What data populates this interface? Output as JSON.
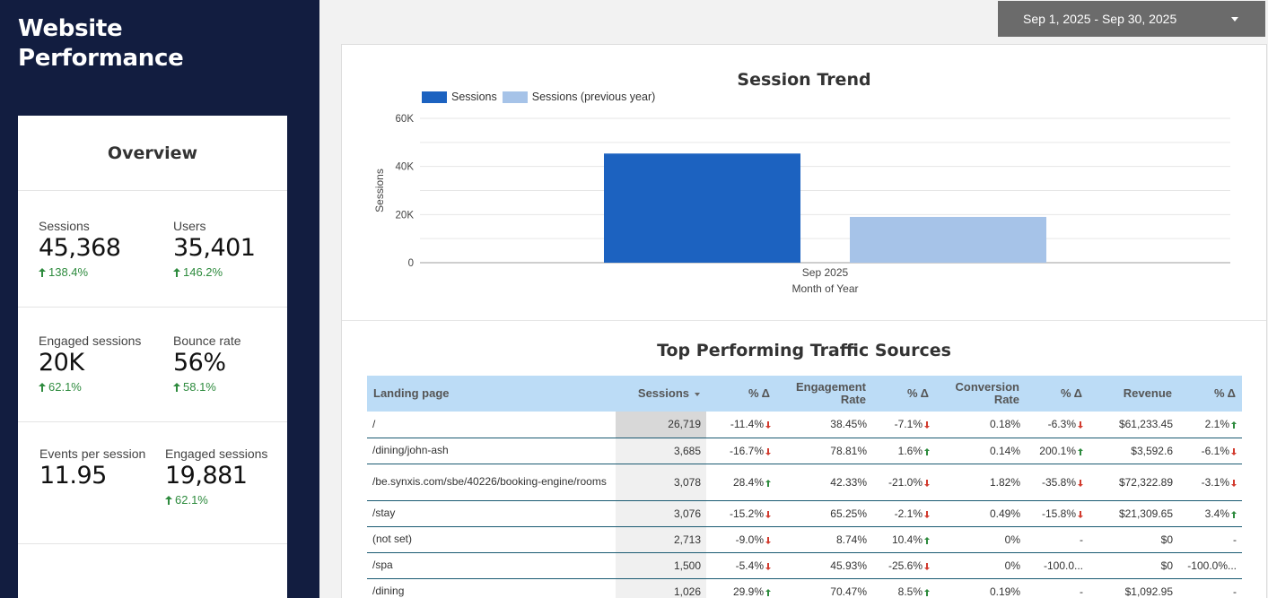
{
  "header": {
    "title_line1": "Website",
    "title_line2": "Performance",
    "date_range": "Sep 1, 2025 - Sep 30, 2025"
  },
  "overview": {
    "title": "Overview",
    "metrics": {
      "sessions": {
        "label": "Sessions",
        "value": "45,368",
        "delta": "138.4%"
      },
      "users": {
        "label": "Users",
        "value": "35,401",
        "delta": "146.2%"
      },
      "engaged_sessions_short": {
        "label": "Engaged sessions",
        "value": "20K",
        "delta": "62.1%"
      },
      "bounce_rate": {
        "label": "Bounce rate",
        "value": "56%",
        "delta": "58.1%"
      },
      "events_per_session": {
        "label": "Events per session",
        "value": "11.95"
      },
      "engaged_sessions": {
        "label": "Engaged sessions",
        "value": "19,881",
        "delta": "62.1%"
      }
    }
  },
  "colors": {
    "sidebar_bg": "#121d40",
    "sessions": "#1c62c0",
    "sessions_prev": "#a6c3e8",
    "positive": "#2e8b3e",
    "negative": "#d23b2e",
    "table_header": "#bcdcf6"
  },
  "chart_data": {
    "type": "bar",
    "title": "Session Trend",
    "categories": [
      "Sep 2025"
    ],
    "series": [
      {
        "name": "Sessions",
        "values": [
          45368
        ],
        "color": "#1c62c0"
      },
      {
        "name": "Sessions (previous year)",
        "values": [
          19030
        ],
        "color": "#a6c3e8"
      }
    ],
    "xlabel": "Month of Year",
    "ylabel": "Sessions",
    "ylim": [
      0,
      60000
    ],
    "y_ticks": [
      0,
      20000,
      40000,
      60000
    ],
    "y_tick_labels": [
      "0",
      "20K",
      "40K",
      "60K"
    ],
    "legend": "top-left"
  },
  "table": {
    "title": "Top Performing Traffic Sources",
    "headers": {
      "landing": "Landing page",
      "sessions": "Sessions",
      "sessions_delta": "% Δ",
      "engagement": "Engagement Rate",
      "engagement_delta": "% Δ",
      "conversion": "Conversion Rate",
      "conversion_delta": "% Δ",
      "revenue": "Revenue",
      "revenue_delta": "% Δ"
    },
    "rows": [
      {
        "page": "/",
        "sessions": "26,719",
        "s_delta": "-11.4%",
        "s_dir": "down",
        "eng": "38.45%",
        "e_delta": "-7.1%",
        "e_dir": "down",
        "conv": "0.18%",
        "c_delta": "-6.3%",
        "c_dir": "down",
        "rev": "$61,233.45",
        "r_delta": "2.1%",
        "r_dir": "up"
      },
      {
        "page": "/dining/john-ash",
        "sessions": "3,685",
        "s_delta": "-16.7%",
        "s_dir": "down",
        "eng": "78.81%",
        "e_delta": "1.6%",
        "e_dir": "up",
        "conv": "0.14%",
        "c_delta": "200.1%",
        "c_dir": "up",
        "rev": "$3,592.6",
        "r_delta": "-6.1%",
        "r_dir": "down"
      },
      {
        "page": "/be.synxis.com/sbe/40226/booking-engine/rooms",
        "sessions": "3,078",
        "s_delta": "28.4%",
        "s_dir": "up",
        "eng": "42.33%",
        "e_delta": "-21.0%",
        "e_dir": "down",
        "conv": "1.82%",
        "c_delta": "-35.8%",
        "c_dir": "down",
        "rev": "$72,322.89",
        "r_delta": "-3.1%",
        "r_dir": "down"
      },
      {
        "page": "/stay",
        "sessions": "3,076",
        "s_delta": "-15.2%",
        "s_dir": "down",
        "eng": "65.25%",
        "e_delta": "-2.1%",
        "e_dir": "down",
        "conv": "0.49%",
        "c_delta": "-15.8%",
        "c_dir": "down",
        "rev": "$21,309.65",
        "r_delta": "3.4%",
        "r_dir": "up"
      },
      {
        "page": "(not set)",
        "sessions": "2,713",
        "s_delta": "-9.0%",
        "s_dir": "down",
        "eng": "8.74%",
        "e_delta": "10.4%",
        "e_dir": "up",
        "conv": "0%",
        "c_delta": "-",
        "c_dir": "none",
        "rev": "$0",
        "r_delta": "-",
        "r_dir": "none"
      },
      {
        "page": "/spa",
        "sessions": "1,500",
        "s_delta": "-5.4%",
        "s_dir": "down",
        "eng": "45.93%",
        "e_delta": "-25.6%",
        "e_dir": "down",
        "conv": "0%",
        "c_delta": "-100.0...",
        "c_dir": "none",
        "rev": "$0",
        "r_delta": "-100.0%...",
        "r_dir": "none"
      },
      {
        "page": "/dining",
        "sessions": "1,026",
        "s_delta": "29.9%",
        "s_dir": "up",
        "eng": "70.47%",
        "e_delta": "8.5%",
        "e_dir": "up",
        "conv": "0.19%",
        "c_delta": "-",
        "c_dir": "none",
        "rev": "$1,092.95",
        "r_delta": "-",
        "r_dir": "none"
      }
    ]
  }
}
